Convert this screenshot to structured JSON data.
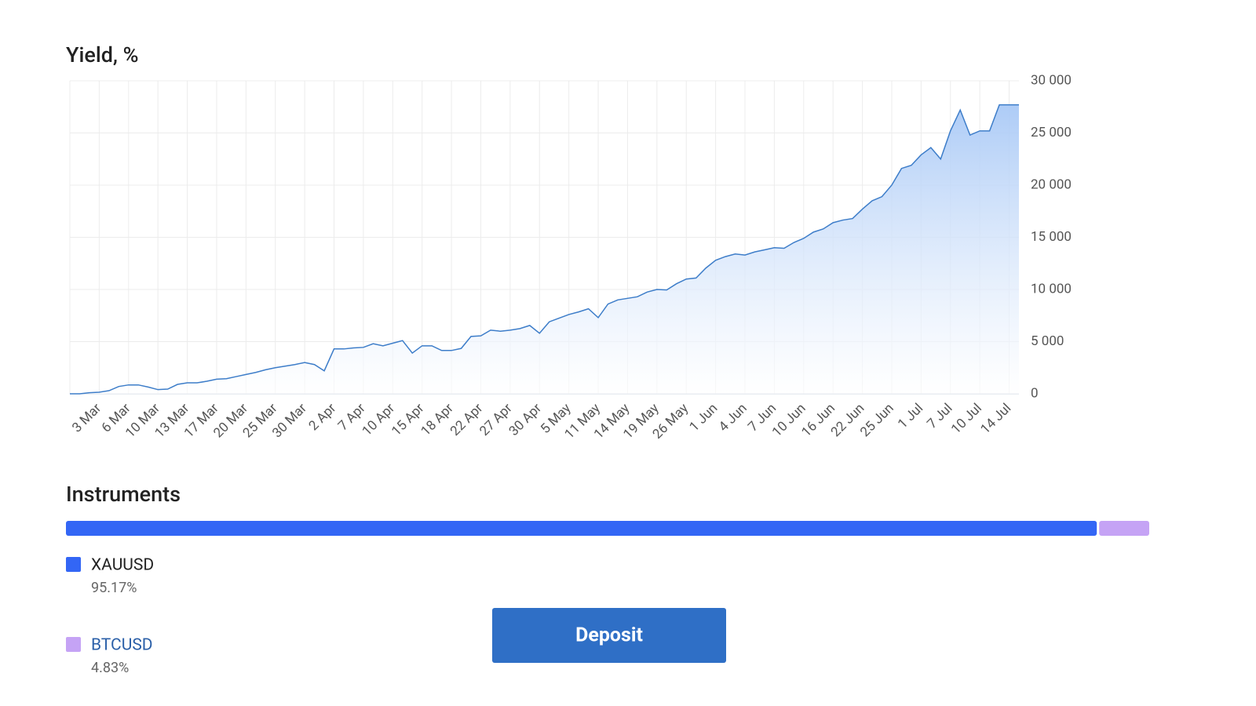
{
  "chart_data": {
    "type": "area",
    "title": "Yield, %",
    "categories": [
      null,
      null,
      null,
      "3 Mar",
      null,
      null,
      "6 Mar",
      null,
      null,
      "10 Mar",
      null,
      null,
      "13 Mar",
      null,
      null,
      "17 Mar",
      null,
      null,
      "20 Mar",
      null,
      null,
      "25 Mar",
      null,
      null,
      "30 Mar",
      null,
      null,
      "2 Apr",
      null,
      null,
      "7 Apr",
      null,
      null,
      "10 Apr",
      null,
      null,
      "15 Apr",
      null,
      null,
      "18 Apr",
      null,
      null,
      "22 Apr",
      null,
      null,
      "27 Apr",
      null,
      null,
      "30 Apr",
      null,
      null,
      "5 May",
      null,
      null,
      "11 May",
      null,
      null,
      "14 May",
      null,
      null,
      "19 May",
      null,
      null,
      "26 May",
      null,
      null,
      "1 Jun",
      null,
      null,
      "4 Jun",
      null,
      null,
      "7 Jun",
      null,
      null,
      "10 Jun",
      null,
      null,
      "16 Jun",
      null,
      null,
      "22 Jun",
      null,
      null,
      "25 Jun",
      null,
      null,
      "1 Jul",
      null,
      null,
      "7 Jul",
      null,
      null,
      "10 Jul",
      null,
      null,
      "14 Jul",
      null
    ],
    "values": [
      0,
      0,
      100,
      150,
      300,
      700,
      850,
      850,
      650,
      400,
      450,
      900,
      1050,
      1050,
      1200,
      1400,
      1450,
      1650,
      1850,
      2050,
      2300,
      2500,
      2650,
      2800,
      3000,
      2800,
      2200,
      4300,
      4300,
      4400,
      4450,
      4800,
      4600,
      4850,
      5100,
      3900,
      4600,
      4600,
      4150,
      4150,
      4350,
      5500,
      5550,
      6100,
      6000,
      6100,
      6250,
      6550,
      5800,
      6900,
      7250,
      7600,
      7850,
      8150,
      7300,
      8600,
      9000,
      9150,
      9300,
      9750,
      10000,
      9950,
      10550,
      11000,
      11100,
      12050,
      12800,
      13150,
      13400,
      13300,
      13600,
      13800,
      14000,
      13950,
      14500,
      14900,
      15500,
      15800,
      16400,
      16650,
      16800,
      17700,
      18500,
      18900,
      20000,
      21600,
      21900,
      22900,
      23600,
      22500,
      25200,
      27200,
      24800,
      25200,
      25200,
      27700,
      27700,
      27700
    ],
    "color": "#3d7dc9",
    "fill_color": "#a9c9f6",
    "ylim": [
      0,
      30000
    ],
    "yticks": [
      0,
      {
        "value": 5000,
        "label": "5 000"
      },
      {
        "value": 10000,
        "label": "10 000"
      },
      {
        "value": 15000,
        "label": "15 000"
      },
      {
        "value": 20000,
        "label": "20 000"
      },
      {
        "value": 25000,
        "label": "25 000"
      },
      {
        "value": 30000,
        "label": "30 000"
      }
    ],
    "grid": true
  },
  "instruments": {
    "title": "Instruments",
    "items": [
      {
        "name": "XAUUSD",
        "color": "#3366f5",
        "value": 95.17,
        "value_label": "95.17%"
      },
      {
        "name": "BTCUSD",
        "color": "#c5a3f5",
        "value": 4.83,
        "value_label": "4.83%"
      }
    ]
  },
  "button": {
    "label": "Deposit"
  }
}
